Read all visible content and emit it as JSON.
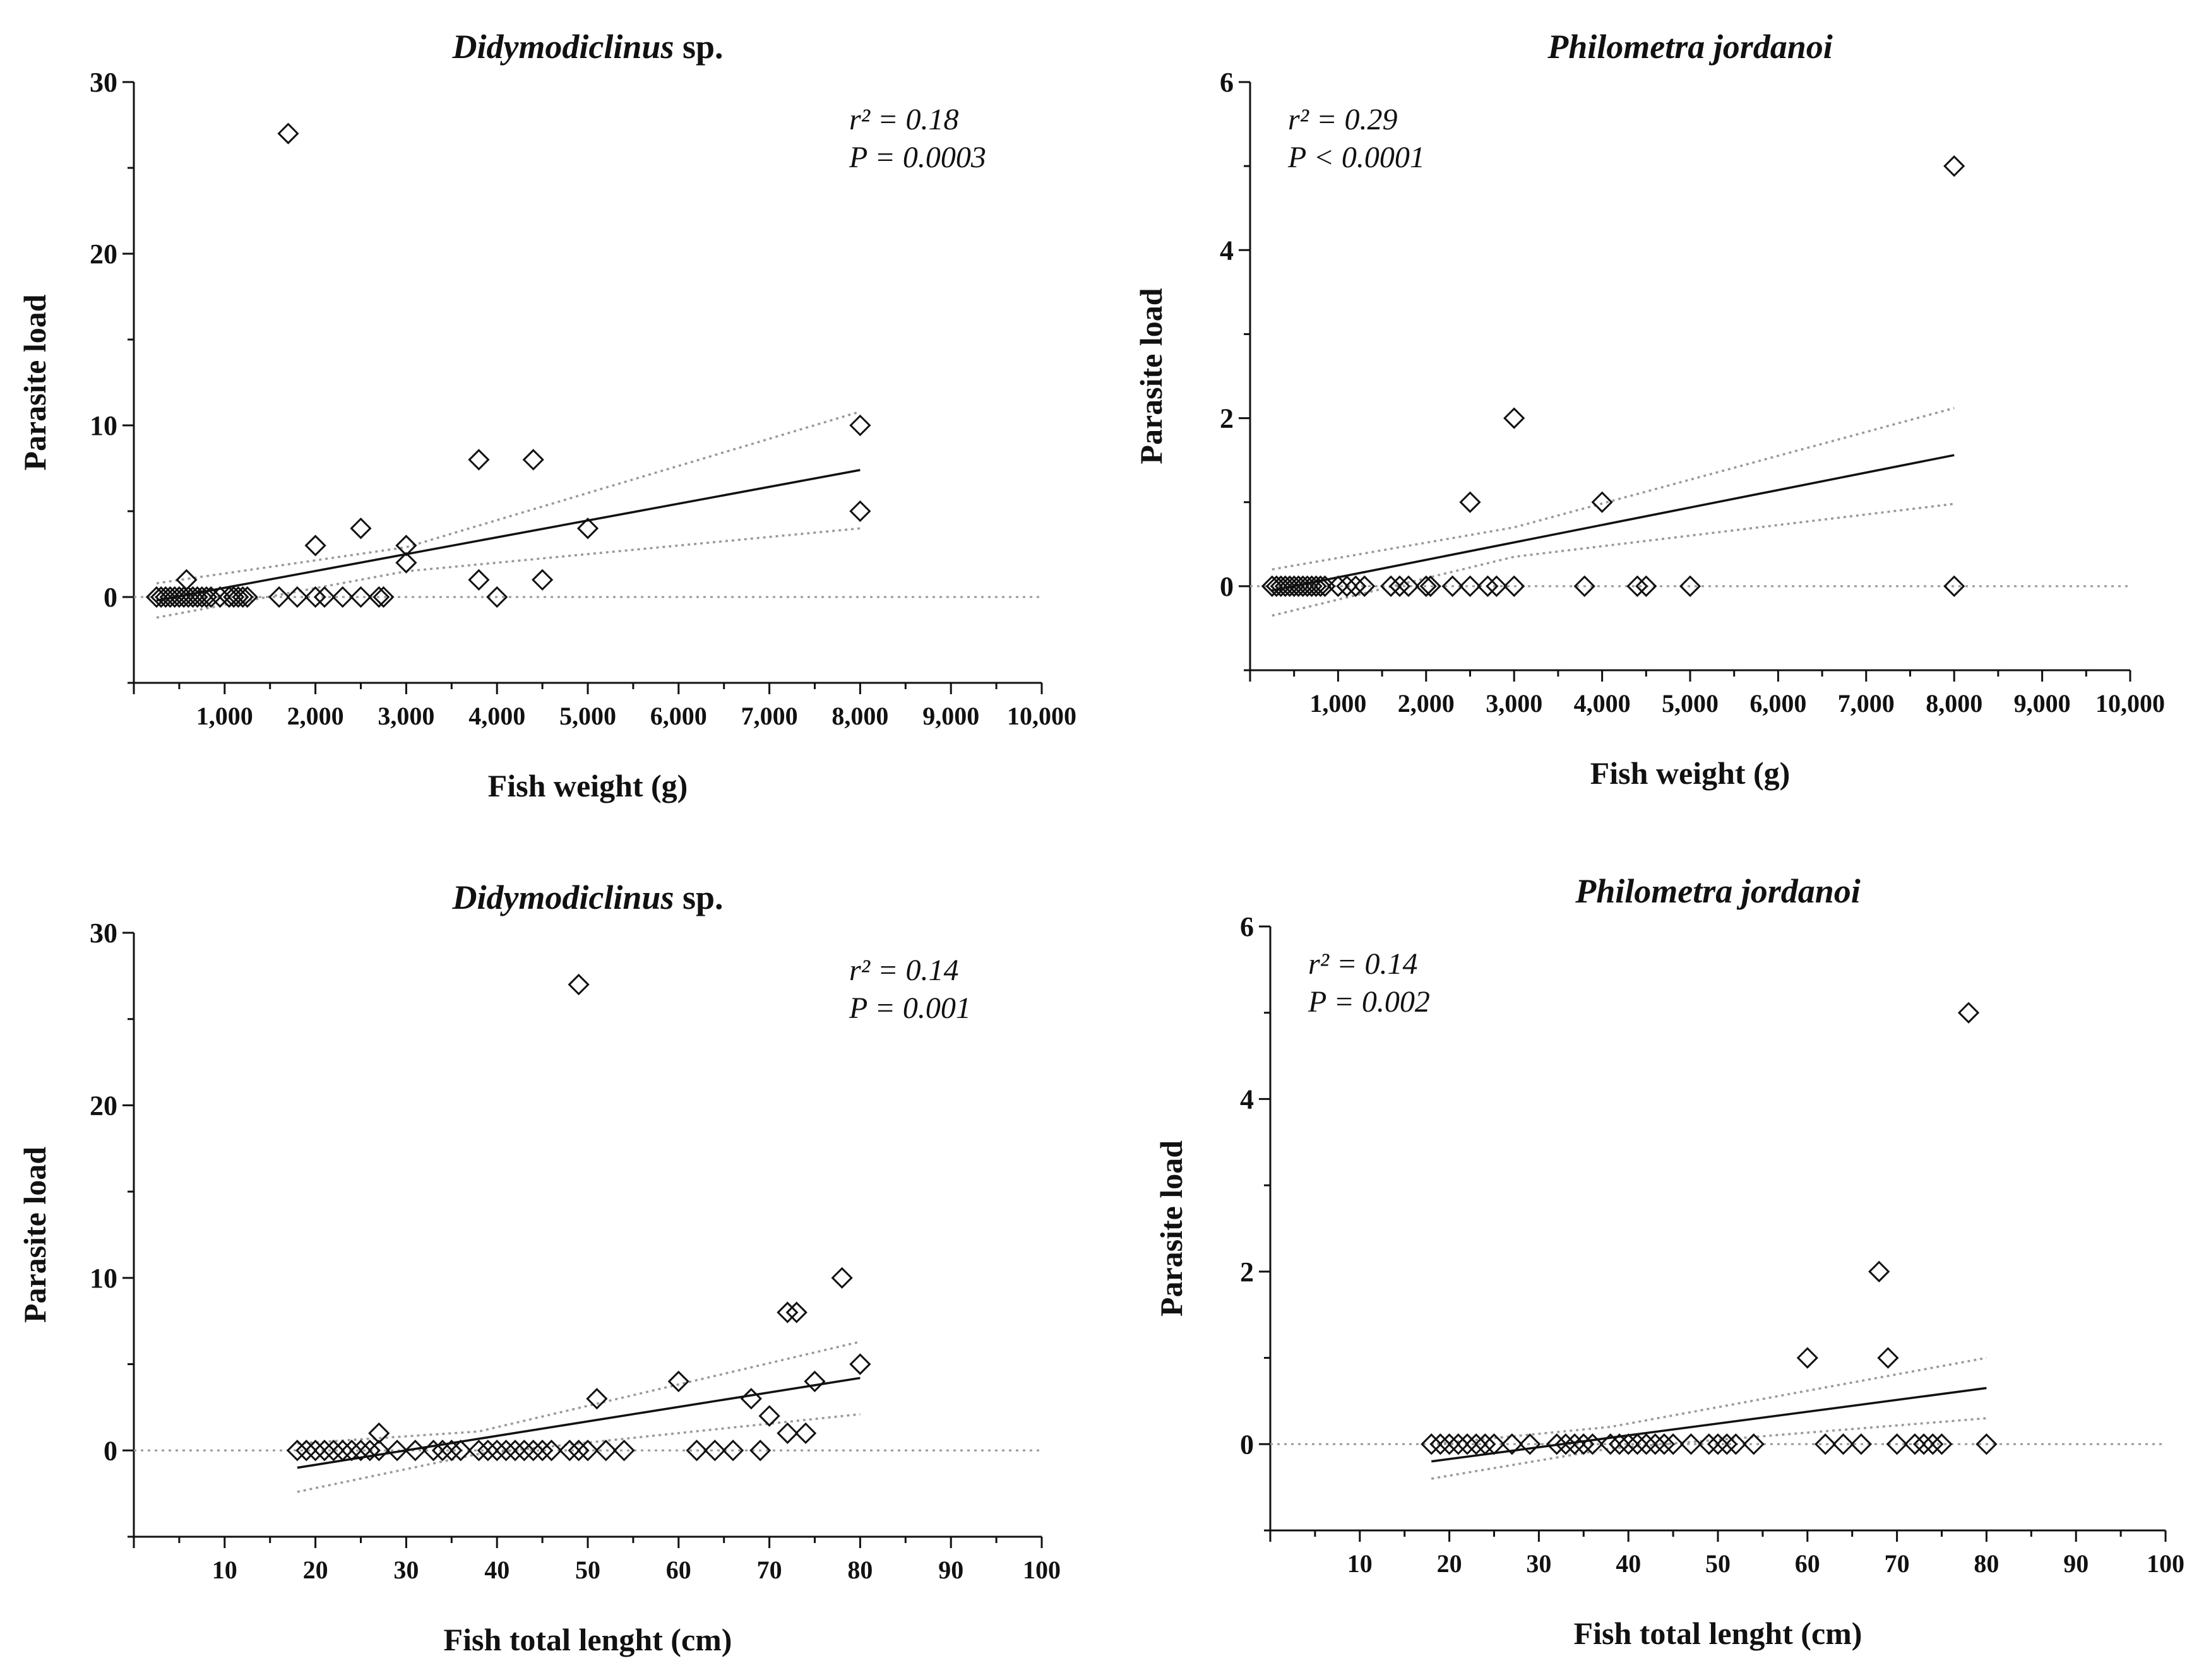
{
  "chart_data": [
    {
      "id": "p1",
      "type": "scatter",
      "title_italic": "Didymodiclinus",
      "title_plain": " sp.",
      "xlabel": "Fish weight (g)",
      "ylabel": "Parasite load",
      "xlim": [
        0,
        10000
      ],
      "ylim": [
        -5,
        30
      ],
      "xticks": [
        1000,
        2000,
        3000,
        4000,
        5000,
        6000,
        7000,
        8000,
        9000,
        10000
      ],
      "xtick_labels": [
        "1,000",
        "2,000",
        "3,000",
        "4,000",
        "5,000",
        "6,000",
        "7,000",
        "8,000",
        "9,000",
        "10,000"
      ],
      "yticks": [
        0,
        10,
        20,
        30
      ],
      "ytick_labels": [
        "0",
        "10",
        "20",
        "30"
      ],
      "annotation": [
        "r² = 0.18",
        "P = 0.0003"
      ],
      "annotation_pos": "top-right",
      "points": [
        [
          250,
          0
        ],
        [
          300,
          0
        ],
        [
          350,
          0
        ],
        [
          400,
          0
        ],
        [
          450,
          0
        ],
        [
          500,
          0
        ],
        [
          550,
          0
        ],
        [
          600,
          0
        ],
        [
          650,
          0
        ],
        [
          700,
          0
        ],
        [
          750,
          0
        ],
        [
          800,
          0
        ],
        [
          850,
          0
        ],
        [
          950,
          0
        ],
        [
          1050,
          0
        ],
        [
          1100,
          0
        ],
        [
          1150,
          0
        ],
        [
          1200,
          0
        ],
        [
          1250,
          0
        ],
        [
          1600,
          0
        ],
        [
          1800,
          0
        ],
        [
          2000,
          0
        ],
        [
          2100,
          0
        ],
        [
          2300,
          0
        ],
        [
          2500,
          0
        ],
        [
          2700,
          0
        ],
        [
          2750,
          0
        ],
        [
          580,
          1
        ],
        [
          1700,
          27
        ],
        [
          2000,
          3
        ],
        [
          2500,
          4
        ],
        [
          3000,
          3
        ],
        [
          3000,
          2
        ],
        [
          3800,
          8
        ],
        [
          3800,
          1
        ],
        [
          4000,
          0
        ],
        [
          4400,
          8
        ],
        [
          4500,
          1
        ],
        [
          5000,
          4
        ],
        [
          8000,
          10
        ],
        [
          8000,
          5
        ]
      ],
      "fit": {
        "x": [
          250,
          8000
        ],
        "y": [
          -0.2,
          7.4
        ]
      },
      "ci_upper": {
        "x": [
          250,
          3000,
          8000
        ],
        "y": [
          0.8,
          2.9,
          10.8
        ]
      },
      "ci_lower": {
        "x": [
          250,
          3000,
          8000
        ],
        "y": [
          -1.2,
          1.5,
          4.0
        ]
      }
    },
    {
      "id": "p2",
      "type": "scatter",
      "title_italic": "Philometra jordanoi",
      "title_plain": "",
      "xlabel": "Fish weight (g)",
      "ylabel": "Parasite load",
      "xlim": [
        0,
        10000
      ],
      "ylim": [
        -1,
        6
      ],
      "xticks": [
        1000,
        2000,
        3000,
        4000,
        5000,
        6000,
        7000,
        8000,
        9000,
        10000
      ],
      "xtick_labels": [
        "1,000",
        "2,000",
        "3,000",
        "4,000",
        "5,000",
        "6,000",
        "7,000",
        "8,000",
        "9,000",
        "10,000"
      ],
      "yticks": [
        0,
        2,
        4,
        6
      ],
      "ytick_labels": [
        "0",
        "2",
        "4",
        "6"
      ],
      "annotation": [
        "r² = 0.29",
        "P < 0.0001"
      ],
      "annotation_pos": "top-left",
      "points": [
        [
          250,
          0
        ],
        [
          300,
          0
        ],
        [
          350,
          0
        ],
        [
          400,
          0
        ],
        [
          450,
          0
        ],
        [
          500,
          0
        ],
        [
          550,
          0
        ],
        [
          600,
          0
        ],
        [
          650,
          0
        ],
        [
          700,
          0
        ],
        [
          750,
          0
        ],
        [
          800,
          0
        ],
        [
          850,
          0
        ],
        [
          1000,
          0
        ],
        [
          1100,
          0
        ],
        [
          1200,
          0
        ],
        [
          1300,
          0
        ],
        [
          1600,
          0
        ],
        [
          1700,
          0
        ],
        [
          1800,
          0
        ],
        [
          2000,
          0
        ],
        [
          2050,
          0
        ],
        [
          2300,
          0
        ],
        [
          2500,
          0
        ],
        [
          2700,
          0
        ],
        [
          2800,
          0
        ],
        [
          3000,
          0
        ],
        [
          3800,
          0
        ],
        [
          4400,
          0
        ],
        [
          4500,
          0
        ],
        [
          5000,
          0
        ],
        [
          8000,
          0
        ],
        [
          2500,
          1
        ],
        [
          3000,
          2
        ],
        [
          4000,
          1
        ],
        [
          8000,
          5
        ]
      ],
      "fit": {
        "x": [
          250,
          8000
        ],
        "y": [
          -0.05,
          1.56
        ]
      },
      "ci_upper": {
        "x": [
          250,
          3000,
          8000
        ],
        "y": [
          0.2,
          0.7,
          2.12
        ]
      },
      "ci_lower": {
        "x": [
          250,
          3000,
          8000
        ],
        "y": [
          -0.35,
          0.35,
          0.98
        ]
      }
    },
    {
      "id": "p3",
      "type": "scatter",
      "title_italic": "Didymodiclinus",
      "title_plain": " sp.",
      "xlabel": "Fish total lenght (cm)",
      "ylabel": "Parasite load",
      "xlim": [
        0,
        100
      ],
      "ylim": [
        -5,
        30
      ],
      "xticks": [
        10,
        20,
        30,
        40,
        50,
        60,
        70,
        80,
        90,
        100
      ],
      "xtick_labels": [
        "10",
        "20",
        "30",
        "40",
        "50",
        "60",
        "70",
        "80",
        "90",
        "100"
      ],
      "yticks": [
        0,
        10,
        20,
        30
      ],
      "ytick_labels": [
        "0",
        "10",
        "20",
        "30"
      ],
      "annotation": [
        "r² = 0.14",
        "P = 0.001"
      ],
      "annotation_pos": "top-right",
      "points": [
        [
          18,
          0
        ],
        [
          19,
          0
        ],
        [
          20,
          0
        ],
        [
          21,
          0
        ],
        [
          22,
          0
        ],
        [
          23,
          0
        ],
        [
          24,
          0
        ],
        [
          25,
          0
        ],
        [
          26,
          0
        ],
        [
          27,
          0
        ],
        [
          29,
          0
        ],
        [
          31,
          0
        ],
        [
          33,
          0
        ],
        [
          34,
          0
        ],
        [
          35,
          0
        ],
        [
          36,
          0
        ],
        [
          38,
          0
        ],
        [
          39,
          0
        ],
        [
          40,
          0
        ],
        [
          41,
          0
        ],
        [
          42,
          0
        ],
        [
          43,
          0
        ],
        [
          44,
          0
        ],
        [
          45,
          0
        ],
        [
          46,
          0
        ],
        [
          48,
          0
        ],
        [
          49,
          0
        ],
        [
          50,
          0
        ],
        [
          52,
          0
        ],
        [
          54,
          0
        ],
        [
          62,
          0
        ],
        [
          64,
          0
        ],
        [
          66,
          0
        ],
        [
          69,
          0
        ],
        [
          27,
          1
        ],
        [
          49,
          27
        ],
        [
          51,
          3
        ],
        [
          60,
          4
        ],
        [
          68,
          3
        ],
        [
          70,
          2
        ],
        [
          72,
          8
        ],
        [
          73,
          8
        ],
        [
          72,
          1
        ],
        [
          74,
          1
        ],
        [
          75,
          4
        ],
        [
          78,
          10
        ],
        [
          80,
          5
        ]
      ],
      "fit": {
        "x": [
          18,
          80
        ],
        "y": [
          -1.0,
          4.2
        ]
      },
      "ci_upper": {
        "x": [
          18,
          38,
          80
        ],
        "y": [
          0.4,
          1.1,
          6.3
        ]
      },
      "ci_lower": {
        "x": [
          18,
          38,
          80
        ],
        "y": [
          -2.4,
          -0.2,
          2.1
        ]
      }
    },
    {
      "id": "p4",
      "type": "scatter",
      "title_italic": "Philometra jordanoi",
      "title_plain": "",
      "xlabel": "Fish total lenght (cm)",
      "ylabel": "Parasite load",
      "xlim": [
        0,
        100
      ],
      "ylim": [
        -1,
        6
      ],
      "xticks": [
        10,
        20,
        30,
        40,
        50,
        60,
        70,
        80,
        90,
        100
      ],
      "xtick_labels": [
        "10",
        "20",
        "30",
        "40",
        "50",
        "60",
        "70",
        "80",
        "90",
        "100"
      ],
      "yticks": [
        0,
        2,
        4,
        6
      ],
      "ytick_labels": [
        "0",
        "2",
        "4",
        "6"
      ],
      "annotation": [
        "r² = 0.14",
        "P = 0.002"
      ],
      "annotation_pos": "top-left",
      "points": [
        [
          18,
          0
        ],
        [
          19,
          0
        ],
        [
          20,
          0
        ],
        [
          21,
          0
        ],
        [
          22,
          0
        ],
        [
          23,
          0
        ],
        [
          24,
          0
        ],
        [
          25,
          0
        ],
        [
          27,
          0
        ],
        [
          29,
          0
        ],
        [
          32,
          0
        ],
        [
          33,
          0
        ],
        [
          34,
          0
        ],
        [
          35,
          0
        ],
        [
          36,
          0
        ],
        [
          38,
          0
        ],
        [
          39,
          0
        ],
        [
          40,
          0
        ],
        [
          41,
          0
        ],
        [
          42,
          0
        ],
        [
          43,
          0
        ],
        [
          44,
          0
        ],
        [
          45,
          0
        ],
        [
          47,
          0
        ],
        [
          49,
          0
        ],
        [
          50,
          0
        ],
        [
          51,
          0
        ],
        [
          52,
          0
        ],
        [
          54,
          0
        ],
        [
          62,
          0
        ],
        [
          64,
          0
        ],
        [
          66,
          0
        ],
        [
          70,
          0
        ],
        [
          72,
          0
        ],
        [
          73,
          0
        ],
        [
          74,
          0
        ],
        [
          75,
          0
        ],
        [
          80,
          0
        ],
        [
          60,
          1
        ],
        [
          68,
          2
        ],
        [
          69,
          1
        ],
        [
          78,
          5
        ]
      ],
      "fit": {
        "x": [
          18,
          80
        ],
        "y": [
          -0.2,
          0.65
        ]
      },
      "ci_upper": {
        "x": [
          18,
          38,
          80
        ],
        "y": [
          0.0,
          0.2,
          1.0
        ]
      },
      "ci_lower": {
        "x": [
          18,
          38,
          80
        ],
        "y": [
          -0.4,
          -0.05,
          0.3
        ]
      }
    }
  ]
}
